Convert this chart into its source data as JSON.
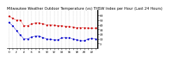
{
  "title": "Milwaukee Weather Outdoor Temperature (vs) THSW Index per Hour (Last 24 Hours)",
  "red_temp": [
    58,
    54,
    50,
    50,
    38,
    38,
    42,
    44,
    44,
    42,
    40,
    40,
    39,
    38,
    38,
    37,
    36,
    35,
    34,
    34,
    34,
    33,
    33,
    33
  ],
  "blue_thsw": [
    45,
    38,
    28,
    18,
    10,
    10,
    14,
    16,
    16,
    13,
    10,
    9,
    8,
    8,
    12,
    13,
    12,
    10,
    8,
    6,
    6,
    10,
    11,
    10
  ],
  "hours": [
    0,
    1,
    2,
    3,
    4,
    5,
    6,
    7,
    8,
    9,
    10,
    11,
    12,
    13,
    14,
    15,
    16,
    17,
    18,
    19,
    20,
    21,
    22,
    23
  ],
  "ylim_min": -10,
  "ylim_max": 70,
  "ytick_vals": [
    0,
    10,
    20,
    30,
    40,
    50,
    60
  ],
  "ytick_labels": [
    "0",
    "10",
    "20",
    "30",
    "40",
    "50",
    "60"
  ],
  "red_color": "#cc0000",
  "blue_color": "#0000cc",
  "grid_color": "#888888",
  "bg_color": "#ffffff",
  "title_fontsize": 3.8,
  "tick_fontsize": 3.0,
  "line_width": 0.9
}
